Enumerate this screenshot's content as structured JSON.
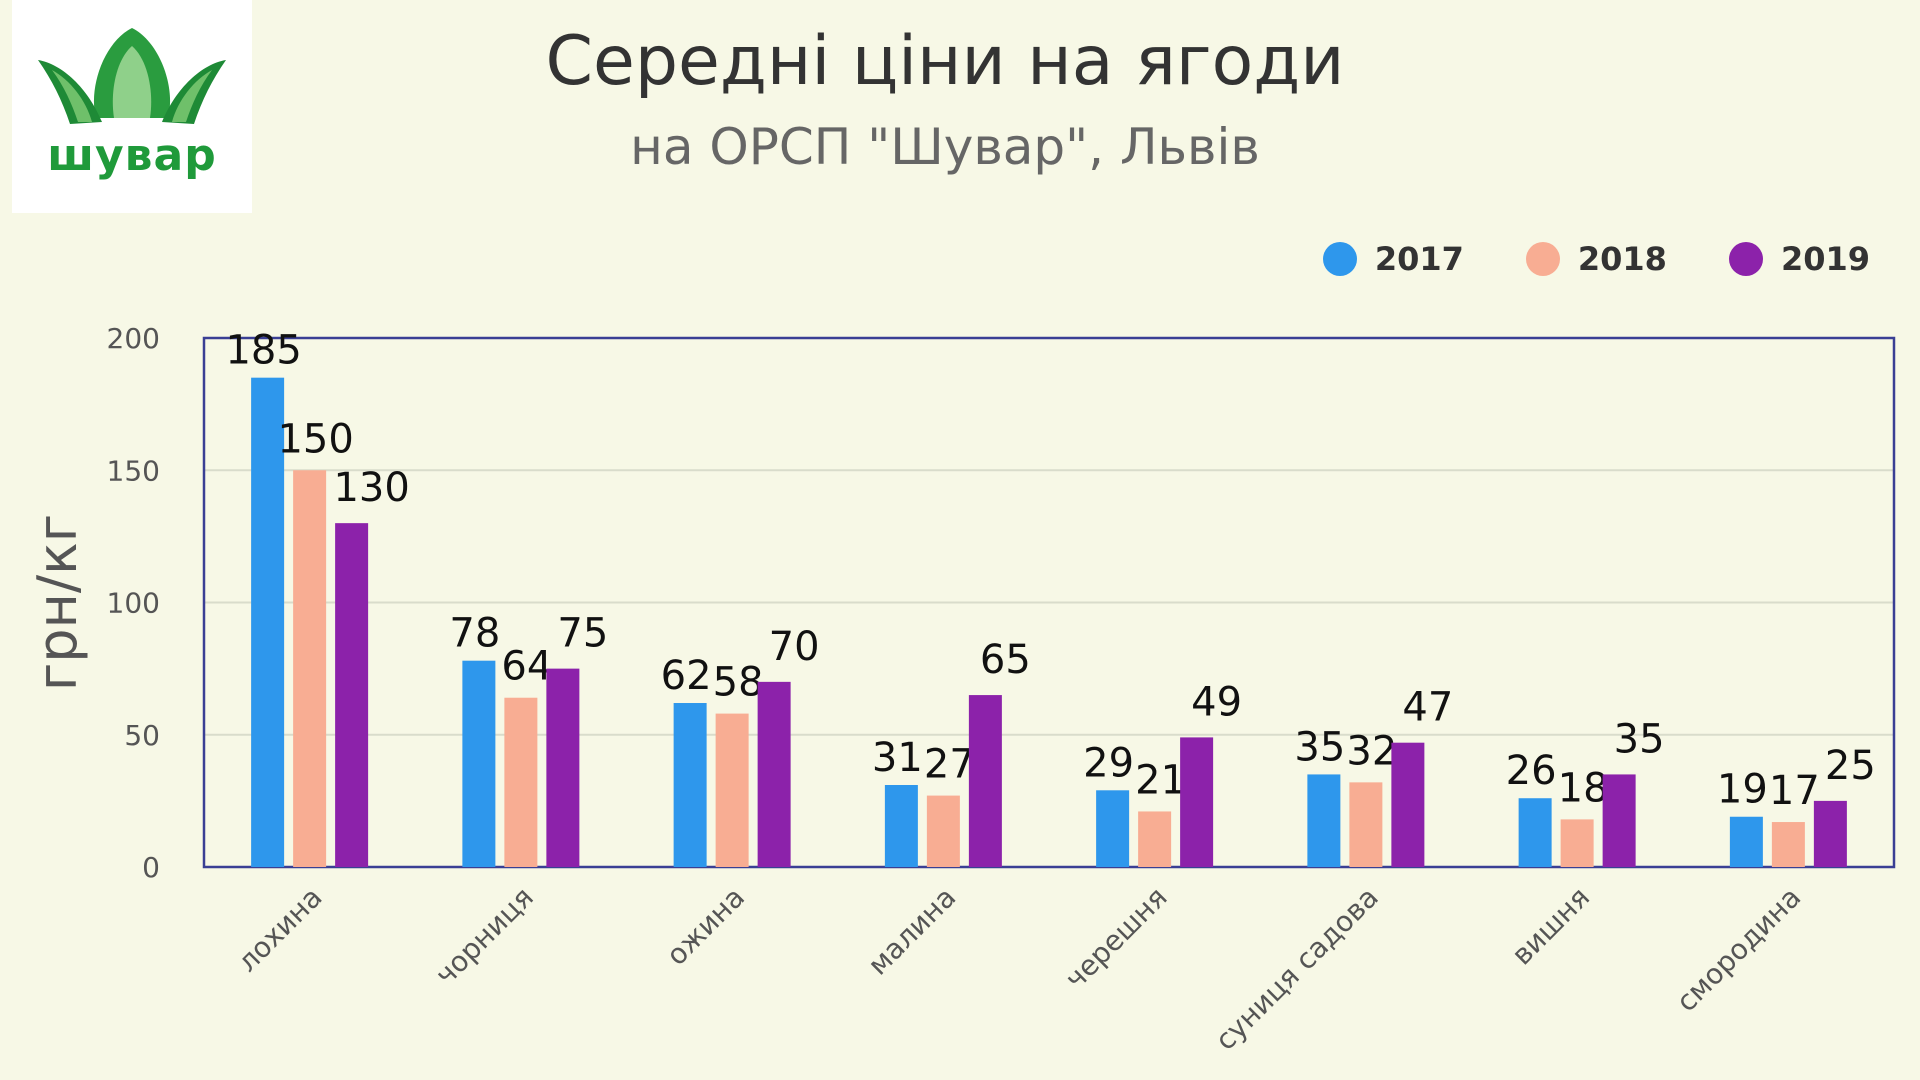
{
  "logo": {
    "text": "шувар"
  },
  "chart_data": {
    "type": "bar",
    "title": "Середні ціни на ягоди",
    "subtitle": "на ОРСП \"Шувар\", Львів",
    "ylabel": "грн/кг",
    "xlabel": "",
    "ylim": [
      0,
      200
    ],
    "yticks": [
      0,
      50,
      100,
      150,
      200
    ],
    "grid": true,
    "legend_position": "top-right",
    "categories": [
      "лохина",
      "чорниця",
      "ожина",
      "малина",
      "черешня",
      "суниця садова",
      "вишня",
      "смородина"
    ],
    "series": [
      {
        "name": "2017",
        "color": "#2e97ec",
        "values": [
          185,
          78,
          62,
          31,
          29,
          35,
          26,
          19
        ]
      },
      {
        "name": "2018",
        "color": "#f8ad93",
        "values": [
          150,
          64,
          58,
          27,
          21,
          32,
          18,
          17
        ]
      },
      {
        "name": "2019",
        "color": "#8c22aa",
        "values": [
          130,
          75,
          70,
          65,
          49,
          47,
          35,
          25
        ]
      }
    ]
  }
}
